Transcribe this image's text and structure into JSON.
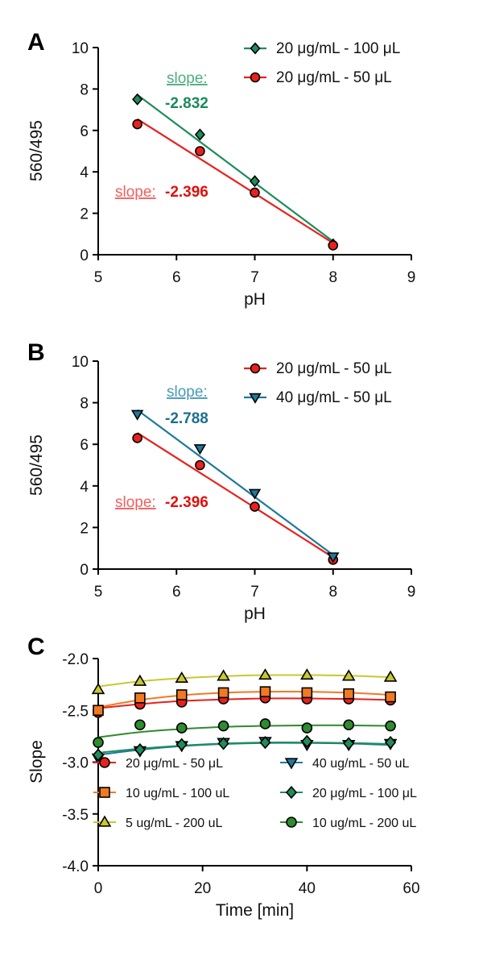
{
  "colors": {
    "red": "#e8211c",
    "green": "#1f8c5c",
    "teal": "#1f7a99",
    "orange": "#f07a22",
    "yellow": "#c8c832",
    "darkgreen": "#2e8b2e",
    "slope_red": "#e0100c",
    "slope_green": "#1b8a5a",
    "slope_teal": "#1f6f8c"
  },
  "panels": [
    {
      "label": "A",
      "slope_labels": [
        {
          "label": "slope:",
          "value": "-2.832",
          "color_key": "slope_green",
          "underline_color": "#4caf80"
        },
        {
          "label": "slope:",
          "value": "-2.396",
          "color_key": "slope_red",
          "underline_color": "#f06060"
        }
      ]
    },
    {
      "label": "B",
      "slope_labels": [
        {
          "label": "slope:",
          "value": "-2.788",
          "color_key": "slope_teal",
          "underline_color": "#4a9ab8"
        },
        {
          "label": "slope:",
          "value": "-2.396",
          "color_key": "slope_red",
          "underline_color": "#f06060"
        }
      ]
    },
    {
      "label": "C",
      "slope_labels": []
    }
  ],
  "chart_data": [
    {
      "type": "scatter",
      "panel": "A",
      "xlabel": "pH",
      "ylabel": "560/495",
      "xlim": [
        5,
        9
      ],
      "ylim": [
        0,
        10
      ],
      "xticks": [
        5,
        6,
        7,
        8,
        9
      ],
      "yticks": [
        0,
        2,
        4,
        6,
        8,
        10
      ],
      "legend_position": "top-right",
      "series": [
        {
          "name": "20 μg/mL - 100 μL",
          "marker": "diamond",
          "color_key": "green",
          "x": [
            5.5,
            6.3,
            7.0,
            8.0
          ],
          "y": [
            7.5,
            5.8,
            3.55,
            0.5
          ],
          "fit": {
            "x": [
              5.5,
              8.0
            ],
            "y": [
              7.72,
              0.64
            ]
          }
        },
        {
          "name": "20 μg/mL - 50 μL",
          "marker": "circle",
          "color_key": "red",
          "x": [
            5.5,
            6.3,
            7.0,
            8.0
          ],
          "y": [
            6.3,
            5.0,
            3.0,
            0.45
          ],
          "fit": {
            "x": [
              5.5,
              8.0
            ],
            "y": [
              6.55,
              0.56
            ]
          }
        }
      ]
    },
    {
      "type": "scatter",
      "panel": "B",
      "xlabel": "pH",
      "ylabel": "560/495",
      "xlim": [
        5,
        9
      ],
      "ylim": [
        0,
        10
      ],
      "xticks": [
        5,
        6,
        7,
        8,
        9
      ],
      "yticks": [
        0,
        2,
        4,
        6,
        8,
        10
      ],
      "legend_position": "top-right",
      "series": [
        {
          "name": "20 μg/mL - 50 μL",
          "marker": "circle",
          "color_key": "red",
          "x": [
            5.5,
            6.3,
            7.0,
            8.0
          ],
          "y": [
            6.3,
            5.0,
            3.0,
            0.45
          ],
          "fit": {
            "x": [
              5.5,
              8.0
            ],
            "y": [
              6.55,
              0.56
            ]
          }
        },
        {
          "name": "40 μg/mL - 50 μL",
          "marker": "triangle-down",
          "color_key": "teal",
          "x": [
            5.5,
            6.3,
            7.0,
            8.0
          ],
          "y": [
            7.45,
            5.8,
            3.65,
            0.6
          ],
          "fit": {
            "x": [
              5.5,
              8.0
            ],
            "y": [
              7.65,
              0.68
            ]
          }
        }
      ]
    },
    {
      "type": "scatter",
      "panel": "C",
      "xlabel": "Time [min]",
      "ylabel": "Slope",
      "xlim": [
        0,
        60
      ],
      "ylim": [
        -4.0,
        -2.0
      ],
      "xticks": [
        0,
        20,
        40,
        60
      ],
      "yticks": [
        -4.0,
        -3.5,
        -3.0,
        -2.5,
        -2.0
      ],
      "ytick_labels": [
        "-4.0",
        "-3.5",
        "-3.0",
        "-2.5",
        "-2.0"
      ],
      "legend_position": "bottom",
      "series": [
        {
          "name": "20 μg/mL - 50 μL",
          "marker": "circle",
          "color_key": "red",
          "x": [
            0,
            8,
            16,
            24,
            32,
            40,
            48,
            56
          ],
          "y": [
            -2.52,
            -2.44,
            -2.42,
            -2.39,
            -2.38,
            -2.39,
            -2.39,
            -2.4
          ],
          "fit": {
            "x": [
              0,
              8,
              16,
              24,
              32,
              40,
              48,
              56
            ],
            "y": [
              -2.48,
              -2.44,
              -2.41,
              -2.395,
              -2.385,
              -2.385,
              -2.39,
              -2.4
            ]
          }
        },
        {
          "name": "40 ug/mL - 50 uL",
          "marker": "triangle-down",
          "color_key": "teal",
          "x": [
            0,
            8,
            16,
            24,
            32,
            40,
            48,
            56
          ],
          "y": [
            -2.96,
            -2.89,
            -2.84,
            -2.81,
            -2.8,
            -2.83,
            -2.83,
            -2.82
          ],
          "fit": {
            "x": [
              0,
              8,
              16,
              24,
              32,
              40,
              48,
              56
            ],
            "y": [
              -2.93,
              -2.88,
              -2.845,
              -2.825,
              -2.815,
              -2.815,
              -2.82,
              -2.835
            ]
          }
        },
        {
          "name": "10 ug/mL - 100 uL",
          "marker": "square",
          "color_key": "orange",
          "x": [
            0,
            8,
            16,
            24,
            32,
            40,
            48,
            56
          ],
          "y": [
            -2.5,
            -2.38,
            -2.35,
            -2.33,
            -2.32,
            -2.33,
            -2.34,
            -2.37
          ],
          "fit": {
            "x": [
              0,
              8,
              16,
              24,
              32,
              40,
              48,
              56
            ],
            "y": [
              -2.47,
              -2.4,
              -2.355,
              -2.33,
              -2.32,
              -2.32,
              -2.33,
              -2.35
            ]
          }
        },
        {
          "name": "20 μg/mL - 100 μL",
          "marker": "diamond",
          "color_key": "green",
          "x": [
            0,
            8,
            16,
            24,
            32,
            40,
            48,
            56
          ],
          "y": [
            -2.93,
            -2.88,
            -2.83,
            -2.82,
            -2.81,
            -2.8,
            -2.82,
            -2.81
          ],
          "fit": {
            "x": [
              0,
              8,
              16,
              24,
              32,
              40,
              48,
              56
            ],
            "y": [
              -2.91,
              -2.87,
              -2.84,
              -2.82,
              -2.81,
              -2.81,
              -2.815,
              -2.825
            ]
          }
        },
        {
          "name": "5 ug/mL - 200 uL",
          "marker": "triangle-up",
          "color_key": "yellow",
          "x": [
            0,
            8,
            16,
            24,
            32,
            40,
            48,
            56
          ],
          "y": [
            -2.3,
            -2.22,
            -2.19,
            -2.17,
            -2.16,
            -2.16,
            -2.17,
            -2.18
          ],
          "fit": {
            "x": [
              0,
              8,
              16,
              24,
              32,
              40,
              48,
              56
            ],
            "y": [
              -2.27,
              -2.22,
              -2.19,
              -2.17,
              -2.16,
              -2.16,
              -2.165,
              -2.18
            ]
          }
        },
        {
          "name": "10 ug/mL - 200 uL",
          "marker": "circle",
          "color_key": "darkgreen",
          "x": [
            0,
            8,
            16,
            24,
            32,
            40,
            48,
            56
          ],
          "y": [
            -2.81,
            -2.64,
            -2.67,
            -2.65,
            -2.63,
            -2.67,
            -2.64,
            -2.65
          ],
          "fit": {
            "x": [
              0,
              8,
              16,
              24,
              32,
              40,
              48,
              56
            ],
            "y": [
              -2.76,
              -2.71,
              -2.68,
              -2.66,
              -2.65,
              -2.645,
              -2.645,
              -2.65
            ]
          }
        }
      ]
    }
  ]
}
